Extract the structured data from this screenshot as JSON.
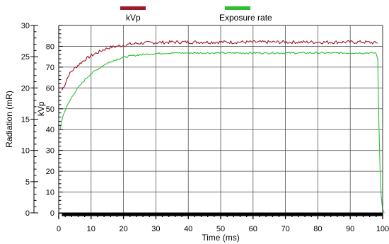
{
  "chart_data": {
    "type": "line",
    "xlabel": "Time (ms)",
    "xlim": [
      0,
      100
    ],
    "x_ticks": [
      0,
      10,
      20,
      30,
      40,
      50,
      60,
      70,
      80,
      90,
      100
    ],
    "grid": true,
    "legend_position": "top-center",
    "left_axis": {
      "label": "Radiation (mR)",
      "range": [
        0,
        30
      ],
      "ticks": [
        0,
        5,
        10,
        15,
        20,
        25,
        30
      ]
    },
    "right_axis": {
      "label": "kVp",
      "range": [
        0,
        90
      ],
      "ticks": [
        0,
        10,
        20,
        30,
        40,
        50,
        60,
        70,
        80
      ]
    },
    "series": [
      {
        "name": "kVp",
        "color": "#9b1b2a",
        "axis": "kVp",
        "x": [
          1,
          2,
          3,
          4,
          6,
          8,
          10,
          12,
          14,
          16,
          18,
          20,
          22,
          25,
          30,
          35,
          40,
          45,
          50,
          55,
          60,
          65,
          70,
          75,
          80,
          85,
          90,
          95,
          98.5
        ],
        "values": [
          59,
          62,
          66,
          68,
          71,
          73.5,
          75.5,
          77,
          78.5,
          79.5,
          80,
          80.5,
          81,
          81.5,
          81.8,
          82,
          82,
          82,
          82,
          82,
          82,
          82,
          82,
          82,
          82,
          82,
          82,
          82,
          81.5
        ]
      },
      {
        "name": "Exposure rate",
        "color": "#2dbf2d",
        "axis": "Radiation (mR)",
        "x": [
          0.5,
          1,
          2,
          3,
          4,
          5,
          6,
          8,
          10,
          12,
          14,
          16,
          18,
          20,
          22,
          25,
          30,
          35,
          40,
          45,
          50,
          55,
          60,
          65,
          70,
          75,
          80,
          85,
          90,
          95,
          97.5,
          98,
          98.5,
          99,
          99.5,
          100,
          100.5
        ],
        "values": [
          13.5,
          15,
          16.5,
          17.5,
          18.5,
          19.3,
          20,
          21.3,
          22.3,
          23,
          23.7,
          24.2,
          24.6,
          24.9,
          25.1,
          25.3,
          25.5,
          25.6,
          25.6,
          25.6,
          25.6,
          25.6,
          25.6,
          25.6,
          25.6,
          25.6,
          25.6,
          25.6,
          25.6,
          25.6,
          25.6,
          25.6,
          24.5,
          10,
          3,
          0.5,
          0
        ]
      }
    ],
    "baseline_bar": {
      "from": 1,
      "to": 100,
      "color": "#000000"
    }
  }
}
